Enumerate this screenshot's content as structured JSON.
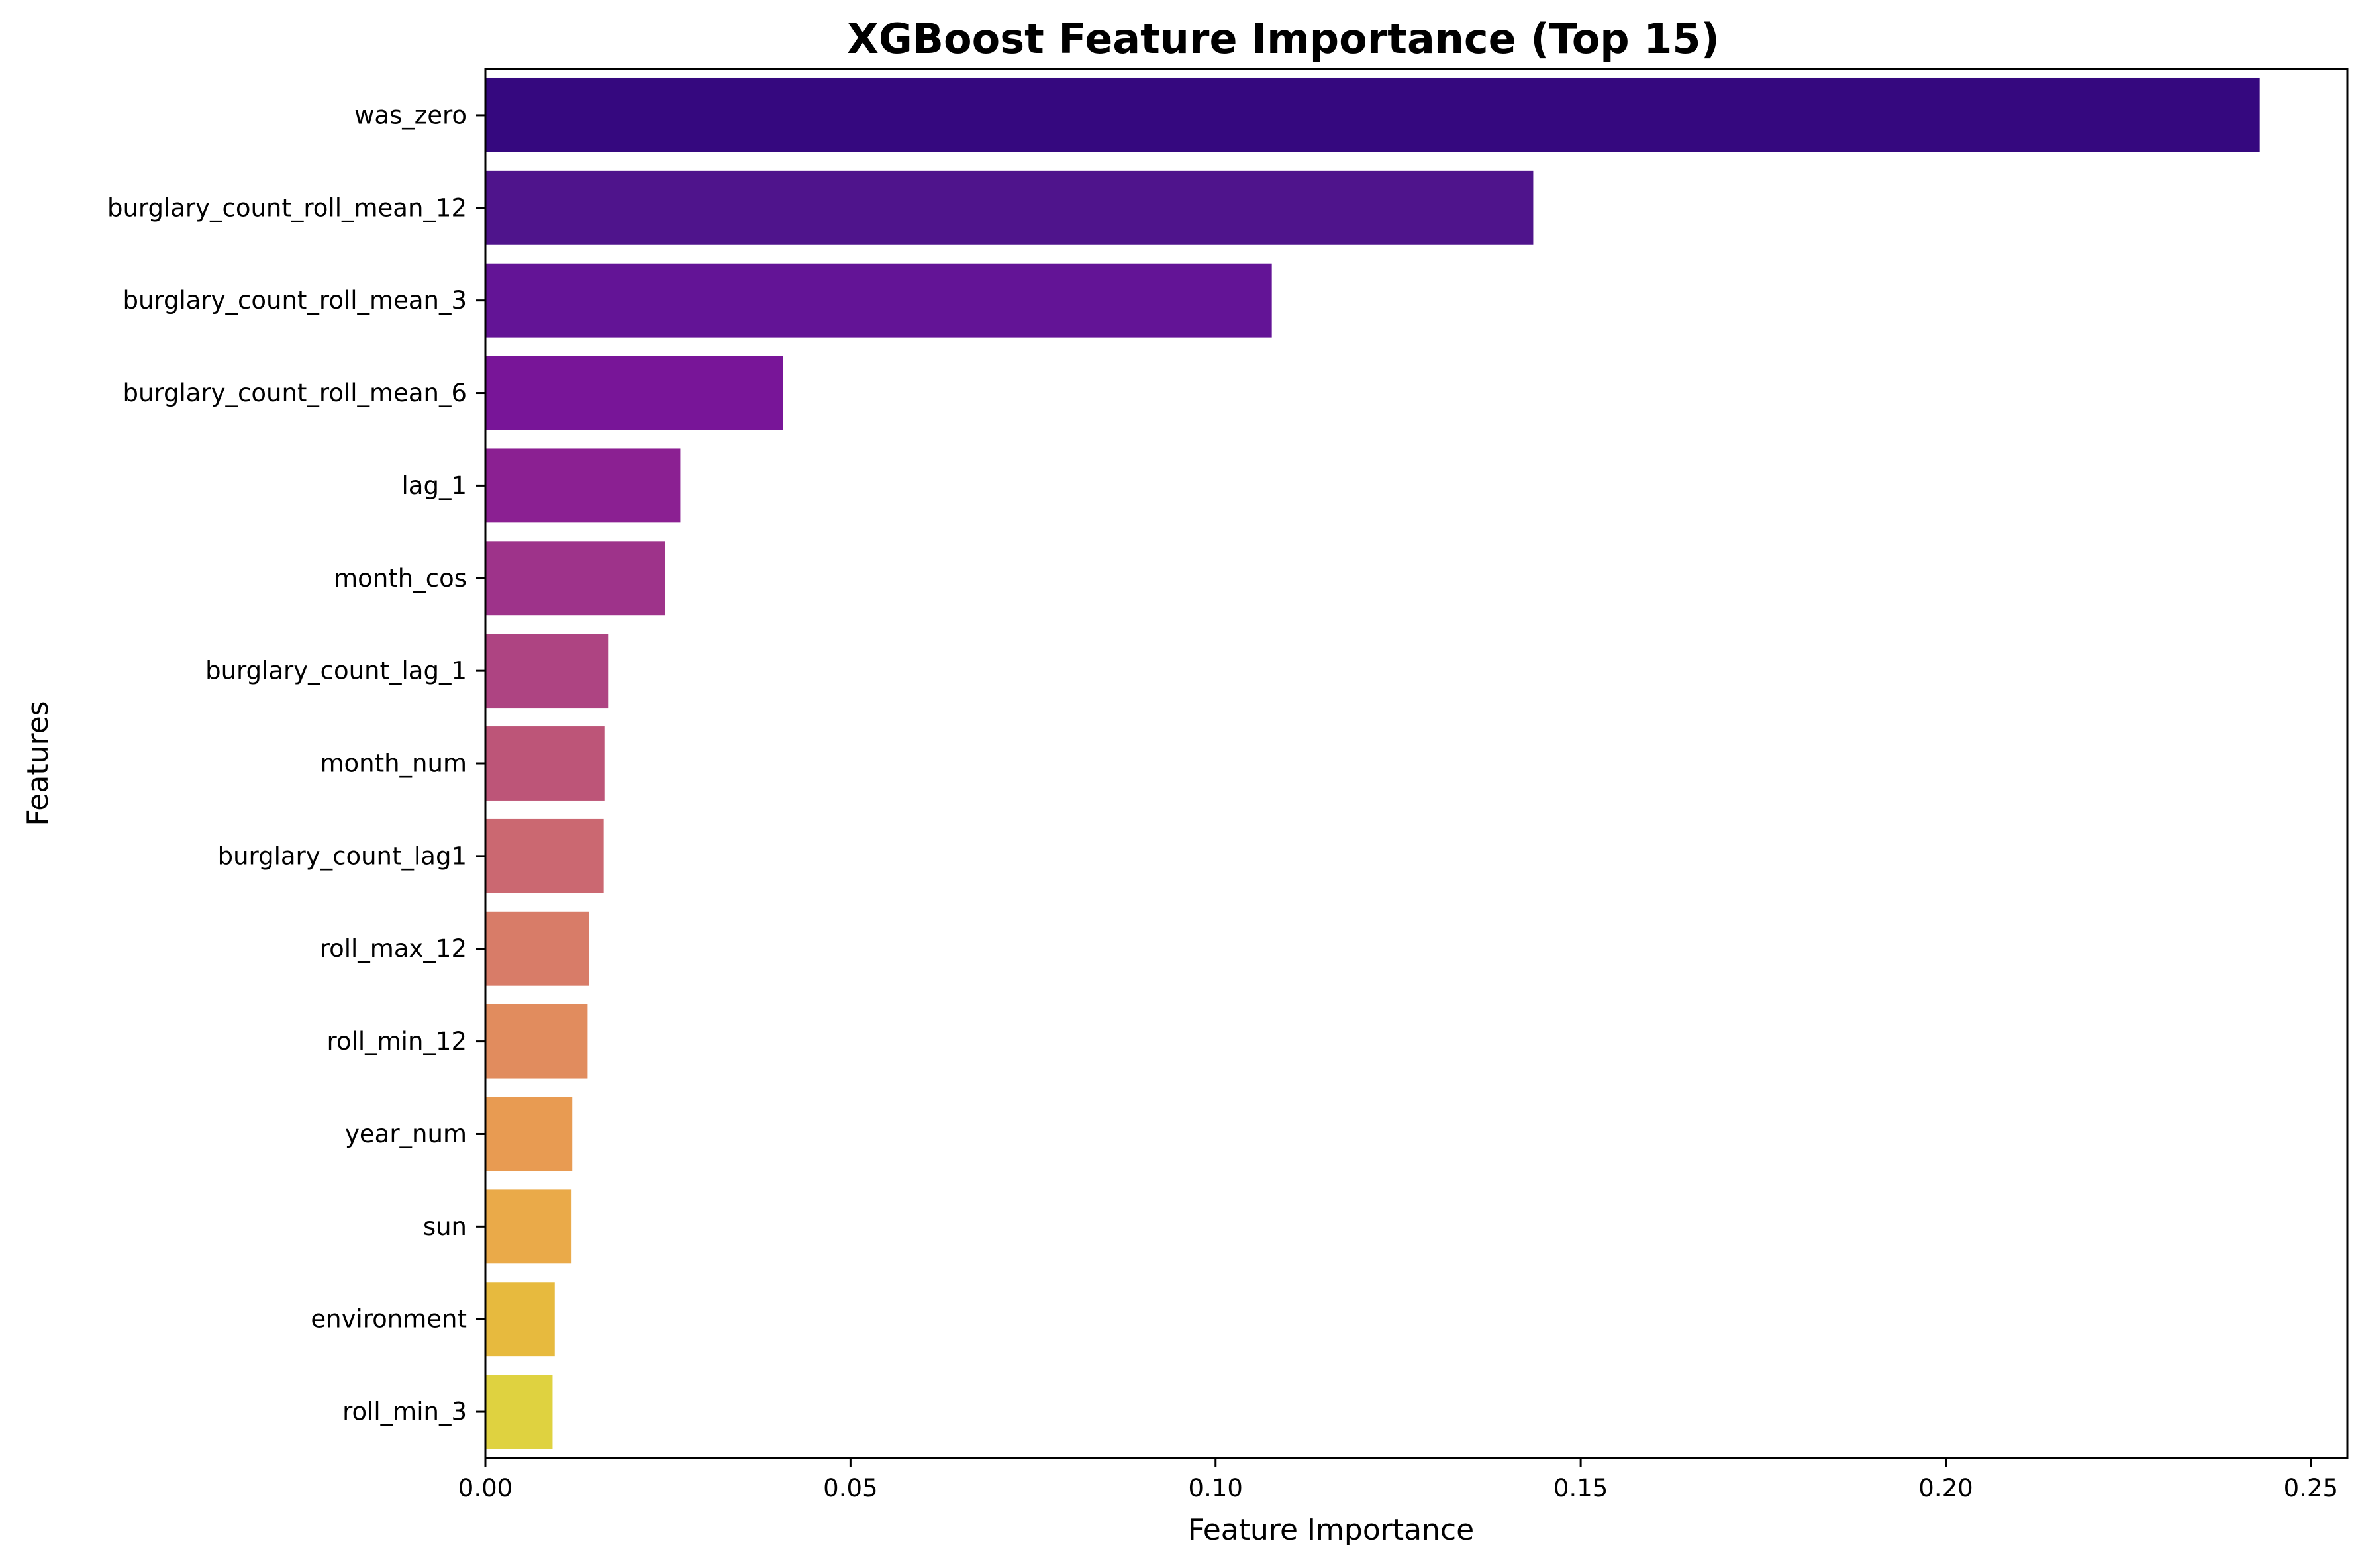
{
  "chart_data": {
    "type": "bar",
    "orientation": "horizontal",
    "title": "XGBoost Feature Importance (Top 15)",
    "xlabel": "Feature Importance",
    "ylabel": "Features",
    "xlim": [
      0,
      0.255
    ],
    "xticks": [
      0.0,
      0.05,
      0.1,
      0.15,
      0.2,
      0.25
    ],
    "xtick_labels": [
      "0.00",
      "0.05",
      "0.10",
      "0.15",
      "0.20",
      "0.25"
    ],
    "grid": false,
    "legend": "none",
    "colormap": "plasma",
    "categories": [
      "was_zero",
      "burglary_count_roll_mean_12",
      "burglary_count_roll_mean_3",
      "burglary_count_roll_mean_6",
      "lag_1",
      "month_cos",
      "burglary_count_lag_1",
      "month_num",
      "burglary_count_lag1",
      "roll_max_12",
      "roll_min_12",
      "year_num",
      "sun",
      "environment",
      "roll_min_3"
    ],
    "values": [
      0.243,
      0.1435,
      0.1077,
      0.0408,
      0.0267,
      0.0246,
      0.0168,
      0.0163,
      0.0162,
      0.0142,
      0.014,
      0.0119,
      0.0118,
      0.0095,
      0.0092
    ],
    "colors": [
      "#35087f",
      "#4f148c",
      "#631496",
      "#781598",
      "#8b2092",
      "#9e338a",
      "#ae4482",
      "#bd5578",
      "#cb6871",
      "#d87c68",
      "#e18c5e",
      "#e89b52",
      "#eaaa49",
      "#e7ba3e",
      "#dfd240"
    ]
  }
}
